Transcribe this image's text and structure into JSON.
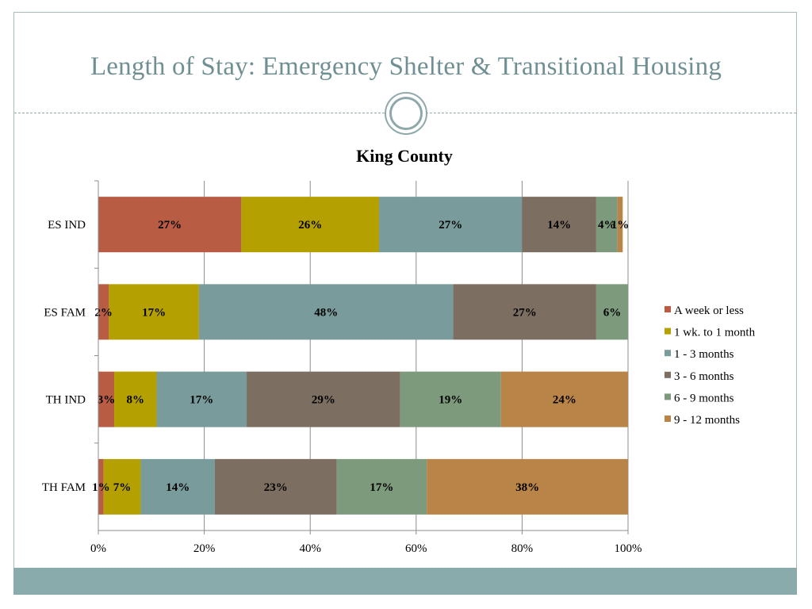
{
  "slide": {
    "title": "Length of Stay: Emergency Shelter & Transitional Housing"
  },
  "chart_data": {
    "type": "bar",
    "orientation": "horizontal",
    "stacked": "percent",
    "title": "King County",
    "xlabel": "",
    "ylabel": "",
    "categories": [
      "ES IND",
      "ES FAM",
      "TH IND",
      "TH FAM"
    ],
    "xlim": [
      0,
      100
    ],
    "x_ticks": [
      "0%",
      "20%",
      "40%",
      "60%",
      "80%",
      "100%"
    ],
    "grid": true,
    "legend_position": "right",
    "series": [
      {
        "name": "A week or less",
        "color": "#b85c44",
        "values": [
          27,
          2,
          3,
          1
        ],
        "labels": [
          "27%",
          "2%",
          "3%",
          "1%"
        ]
      },
      {
        "name": "1 wk. to 1 month",
        "color": "#b4a000",
        "values": [
          26,
          17,
          8,
          7
        ],
        "labels": [
          "26%",
          "17%",
          "8%",
          "7%"
        ]
      },
      {
        "name": "1 - 3 months",
        "color": "#7a9b9b",
        "values": [
          27,
          48,
          17,
          14
        ],
        "labels": [
          "27%",
          "48%",
          "17%",
          "14%"
        ]
      },
      {
        "name": "3 - 6 months",
        "color": "#7d6e62",
        "values": [
          14,
          27,
          29,
          23
        ],
        "labels": [
          "14%",
          "27%",
          "29%",
          "23%"
        ]
      },
      {
        "name": "6 - 9 months",
        "color": "#7d9b7c",
        "values": [
          4,
          6,
          19,
          17
        ],
        "labels": [
          "4%",
          "6%",
          "19%",
          "17%"
        ]
      },
      {
        "name": "9 - 12 months",
        "color": "#b88447",
        "values": [
          1,
          0,
          24,
          38
        ],
        "labels": [
          "1%",
          "",
          "24%",
          "38%"
        ]
      }
    ]
  }
}
